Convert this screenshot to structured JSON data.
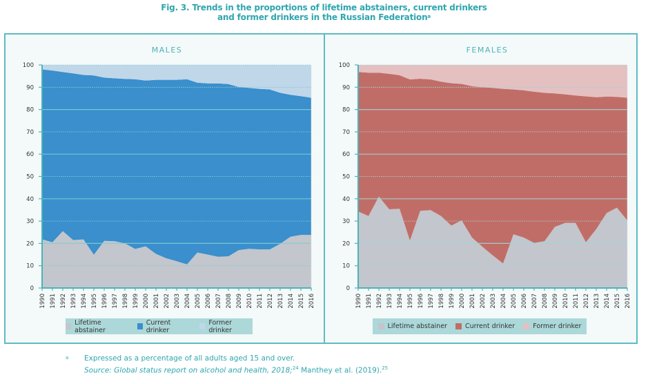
{
  "figure": {
    "title_line1": "Fig. 3. Trends in the proportions of lifetime abstainers, current drinkers",
    "title_line2": "and former drinkers in the Russian Federation",
    "title_superscript": "a"
  },
  "colors": {
    "title": "#2fa6ae",
    "abstainer": "#c3c6cc",
    "male_current": "#3a8fcc",
    "male_former": "#c0d6e9",
    "female_current": "#c16d67",
    "female_former": "#e4c0c1",
    "axis": "#4bb3ba",
    "legend_bg": "#acd8d9"
  },
  "chart_data": [
    {
      "type": "area",
      "stacked": true,
      "title": "MALES",
      "xlabel": "",
      "ylabel": "",
      "ylim": [
        0,
        100
      ],
      "yticks": [
        0,
        10,
        20,
        30,
        40,
        50,
        60,
        70,
        80,
        90,
        100
      ],
      "grid": true,
      "x": [
        1990,
        1991,
        1992,
        1993,
        1994,
        1995,
        1996,
        1997,
        1998,
        1999,
        2000,
        2001,
        2002,
        2003,
        2004,
        2005,
        2006,
        2007,
        2008,
        2009,
        2010,
        2011,
        2012,
        2013,
        2014,
        2015,
        2016
      ],
      "series": [
        {
          "name": "Lifetime abstainer",
          "values": [
            21.8,
            20.5,
            25.5,
            21.5,
            21.8,
            14.9,
            21.1,
            21.0,
            20.0,
            17.5,
            18.7,
            15.3,
            13.3,
            12.0,
            10.6,
            15.9,
            15.0,
            14.0,
            14.2,
            17.0,
            17.6,
            17.3,
            17.3,
            19.8,
            23.0,
            23.8,
            23.8
          ]
        },
        {
          "name": "Current drinker",
          "values": [
            76.2,
            77.0,
            71.3,
            74.7,
            73.7,
            80.4,
            73.2,
            73.0,
            73.7,
            76.1,
            74.3,
            78.0,
            80.0,
            81.3,
            83.0,
            76.1,
            76.7,
            77.7,
            77.2,
            73.1,
            72.1,
            72.0,
            71.7,
            67.7,
            63.6,
            62.2,
            61.5
          ]
        },
        {
          "name": "Former drinker",
          "values": [
            2.0,
            2.5,
            3.2,
            3.8,
            4.5,
            4.7,
            5.7,
            6.0,
            6.3,
            6.4,
            7.0,
            6.7,
            6.7,
            6.7,
            6.4,
            8.0,
            8.3,
            8.3,
            8.6,
            9.9,
            10.3,
            10.7,
            11.0,
            12.5,
            13.4,
            14.0,
            14.7
          ]
        }
      ],
      "legend": [
        "Lifetime abstainer",
        "Current drinker",
        "Former drinker"
      ],
      "legend_position": "bottom"
    },
    {
      "type": "area",
      "stacked": true,
      "title": "FEMALES",
      "xlabel": "",
      "ylabel": "",
      "ylim": [
        0,
        100
      ],
      "yticks": [
        0,
        10,
        20,
        30,
        40,
        50,
        60,
        70,
        80,
        90,
        100
      ],
      "grid": true,
      "x": [
        1990,
        1991,
        1992,
        1993,
        1994,
        1995,
        1996,
        1997,
        1998,
        1999,
        2000,
        2001,
        2002,
        2003,
        2004,
        2005,
        2006,
        2007,
        2008,
        2009,
        2010,
        2011,
        2012,
        2013,
        2014,
        2015,
        2016
      ],
      "series": [
        {
          "name": "Lifetime abstainer",
          "values": [
            34.3,
            32.3,
            41.0,
            35.3,
            35.5,
            21.3,
            34.6,
            34.9,
            32.3,
            28.0,
            30.3,
            22.6,
            18.5,
            14.6,
            11.0,
            24.1,
            22.6,
            20.2,
            21.0,
            27.4,
            29.2,
            29.2,
            20.5,
            26.4,
            33.6,
            36.0,
            30.3
          ]
        },
        {
          "name": "Current drinker",
          "values": [
            62.5,
            64.2,
            55.5,
            60.7,
            59.9,
            72.2,
            59.2,
            58.6,
            60.2,
            63.8,
            61.2,
            67.9,
            71.5,
            75.1,
            78.3,
            64.9,
            66.0,
            67.8,
            66.5,
            59.8,
            57.6,
            57.1,
            65.4,
            59.1,
            52.2,
            49.7,
            55.0
          ]
        },
        {
          "name": "Former drinker",
          "values": [
            3.2,
            3.5,
            3.5,
            4.0,
            4.6,
            6.5,
            6.2,
            6.5,
            7.5,
            8.2,
            8.5,
            9.5,
            10.0,
            10.3,
            10.7,
            11.0,
            11.4,
            12.0,
            12.5,
            12.8,
            13.2,
            13.7,
            14.1,
            14.5,
            14.2,
            14.3,
            14.7
          ]
        }
      ],
      "legend": [
        "Lifetime abstainer",
        "Current drinker",
        "Former drinker"
      ],
      "legend_position": "bottom"
    }
  ],
  "footnote": {
    "marker": "a",
    "line1": "Expressed as a percentage of all adults aged 15 and over.",
    "source_label": "Source: Global status report on alcohol and health, 2018;",
    "source_ref1": "24",
    "source_rest": " Manthey et al. (2019).",
    "source_ref2": "25"
  }
}
